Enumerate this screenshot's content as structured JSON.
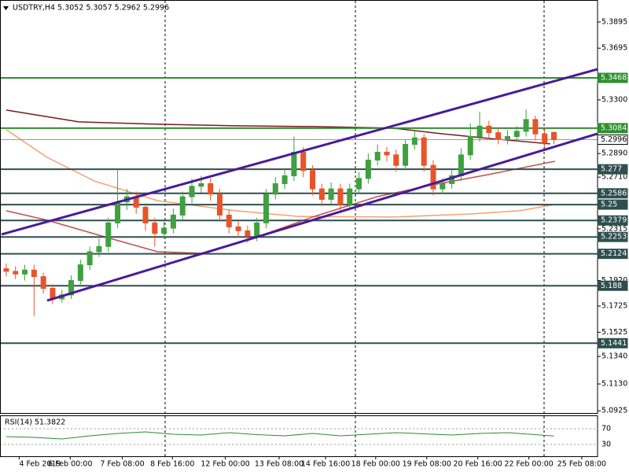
{
  "chart_data": {
    "type": "candlestick",
    "title": "USDTRY,H4  5.3052 5.3057 5.2962 5.2996",
    "open": [
      5.201,
      5.199,
      5.197,
      5.2,
      5.195,
      5.186,
      5.178,
      5.181,
      5.192,
      5.204,
      5.214,
      5.218,
      5.236,
      5.252,
      5.256,
      5.248,
      5.236,
      5.228,
      5.232,
      5.242,
      5.256,
      5.264,
      5.266,
      5.258,
      5.242,
      5.233,
      5.23,
      5.226,
      5.236,
      5.258,
      5.266,
      5.272,
      5.29,
      5.276,
      5.262,
      5.254,
      5.262,
      5.25,
      5.262,
      5.27,
      5.284,
      5.29,
      5.288,
      5.28,
      5.296,
      5.301,
      5.28,
      5.262,
      5.266,
      5.272,
      5.288,
      5.302,
      5.31,
      5.305,
      5.3,
      5.302,
      5.306,
      5.315,
      5.304,
      5.3052
    ],
    "high": [
      5.205,
      5.203,
      5.204,
      5.204,
      5.198,
      5.189,
      5.185,
      5.196,
      5.208,
      5.218,
      5.224,
      5.24,
      5.277,
      5.262,
      5.26,
      5.251,
      5.24,
      5.237,
      5.247,
      5.26,
      5.27,
      5.272,
      5.27,
      5.262,
      5.246,
      5.237,
      5.234,
      5.24,
      5.262,
      5.271,
      5.277,
      5.302,
      5.294,
      5.28,
      5.266,
      5.267,
      5.266,
      5.266,
      5.275,
      5.289,
      5.296,
      5.294,
      5.292,
      5.3,
      5.306,
      5.304,
      5.284,
      5.27,
      5.277,
      5.293,
      5.312,
      5.321,
      5.314,
      5.309,
      5.307,
      5.31,
      5.323,
      5.318,
      5.308,
      5.3057
    ],
    "low": [
      5.195,
      5.193,
      5.192,
      5.165,
      5.182,
      5.174,
      5.175,
      5.178,
      5.189,
      5.2,
      5.21,
      5.214,
      5.232,
      5.246,
      5.243,
      5.23,
      5.218,
      5.224,
      5.228,
      5.238,
      5.251,
      5.259,
      5.253,
      5.237,
      5.228,
      5.225,
      5.221,
      5.222,
      5.232,
      5.254,
      5.262,
      5.268,
      5.271,
      5.257,
      5.249,
      5.25,
      5.244,
      5.246,
      5.258,
      5.266,
      5.28,
      5.283,
      5.275,
      5.276,
      5.292,
      5.275,
      5.257,
      5.258,
      5.262,
      5.268,
      5.284,
      5.298,
      5.3,
      5.296,
      5.296,
      5.298,
      5.302,
      5.299,
      5.293,
      5.2962
    ],
    "close": [
      5.199,
      5.197,
      5.2,
      5.195,
      5.186,
      5.178,
      5.181,
      5.192,
      5.204,
      5.214,
      5.218,
      5.236,
      5.252,
      5.256,
      5.248,
      5.236,
      5.228,
      5.232,
      5.242,
      5.256,
      5.264,
      5.266,
      5.258,
      5.242,
      5.233,
      5.23,
      5.226,
      5.236,
      5.258,
      5.266,
      5.272,
      5.29,
      5.276,
      5.262,
      5.254,
      5.262,
      5.25,
      5.262,
      5.27,
      5.284,
      5.29,
      5.288,
      5.28,
      5.296,
      5.301,
      5.28,
      5.262,
      5.266,
      5.272,
      5.288,
      5.302,
      5.31,
      5.305,
      5.3,
      5.302,
      5.306,
      5.315,
      5.304,
      5.297,
      5.2996
    ],
    "up_color": "#3fa03f",
    "down_color": "#e8542a",
    "xlim": [
      -0.5,
      63.7
    ],
    "xticks": [
      {
        "value": 1.4,
        "label": "4 Feb 2019"
      },
      {
        "value": 6.9,
        "label": "6 Feb 00:00"
      },
      {
        "value": 12.5,
        "label": "7 Feb 08:00"
      },
      {
        "value": 17.9,
        "label": "8 Feb 16:00"
      },
      {
        "value": 23.6,
        "label": "12 Feb 00:00"
      },
      {
        "value": 29.4,
        "label": "13 Feb 08:00"
      },
      {
        "value": 34.4,
        "label": "14 Feb 16:00"
      },
      {
        "value": 39.8,
        "label": "18 Feb 00:00"
      },
      {
        "value": 45.3,
        "label": "19 Feb 08:00"
      },
      {
        "value": 50.8,
        "label": "20 Feb 16:00"
      },
      {
        "value": 56.3,
        "label": "22 Feb 00:00"
      },
      {
        "value": 62,
        "label": "25 Feb 08:00"
      }
    ],
    "ylim": [
      5.0908,
      5.4063
    ],
    "yticks": [
      5.3895,
      5.3695,
      {
        "value": 5.33,
        "label": "5.3300"
      },
      {
        "value": 5.289,
        "label": "5.2890"
      },
      {
        "value": 5.271,
        "label": "5.2710"
      },
      5.2315,
      {
        "value": 5.192,
        "label": "5.1920"
      },
      5.1725,
      5.1525,
      {
        "value": 5.134,
        "label": "5.1340"
      },
      {
        "value": 5.113,
        "label": "5.1130"
      },
      5.0925
    ],
    "levels": [
      {
        "value": 5.3468,
        "color": "#2f8f2f"
      },
      {
        "value": 5.3084,
        "color": "#2f8f2f"
      },
      {
        "value": 5.2996,
        "color": "#9a9a9a"
      },
      {
        "value": 5.277,
        "color": "#2f4f4f"
      },
      {
        "value": 5.2586,
        "color": "#2f4f4f"
      },
      {
        "value": 5.25,
        "color": "#2f4f4f"
      },
      {
        "value": 5.2379,
        "color": "#2f4f4f"
      },
      {
        "value": 5.2253,
        "color": "#2f4f4f"
      },
      {
        "value": 5.2124,
        "color": "#2f4f4f"
      },
      {
        "value": 5.188,
        "color": "#2f4f4f"
      },
      {
        "value": 5.1441,
        "color": "#2f4f4f"
      }
    ],
    "overlays": [
      {
        "color": "#7a1a1a",
        "x": [
          0,
          7.8,
          16.3,
          24.8,
          33.2,
          41.7,
          46.8,
          51.9,
          58.6
        ],
        "values": [
          5.3222,
          5.3132,
          5.3114,
          5.3102,
          5.3096,
          5.3084,
          5.3042,
          5.3006,
          5.2964
        ]
      },
      {
        "color": "#f4a070",
        "x": [
          0,
          4.4,
          9.5,
          16.3,
          24.7,
          31.5,
          41.7,
          50.2,
          55.3,
          59.1
        ],
        "values": [
          5.3072,
          5.2861,
          5.268,
          5.253,
          5.2453,
          5.241,
          5.2405,
          5.2429,
          5.2453,
          5.2501
        ]
      },
      {
        "color": "#c0504d",
        "x": [
          0,
          4.4,
          10.3,
          16.3,
          21.4,
          27.3,
          33.2,
          40,
          45.9,
          51.9,
          59.1
        ],
        "values": [
          5.2453,
          5.2381,
          5.226,
          5.214,
          5.2128,
          5.226,
          5.241,
          5.2561,
          5.265,
          5.2729,
          5.2831
        ]
      }
    ],
    "trendlines": [
      {
        "color": "#4b1a9a",
        "x": [
          -0.5,
          63.7
        ],
        "values": [
          5.2273,
          5.3534
        ]
      },
      {
        "color": "#4b1a9a",
        "x": [
          4.4,
          63.7
        ],
        "values": [
          5.1767,
          5.3042
        ]
      }
    ],
    "rsi": {
      "label": "RSI(14) 51.3822",
      "color": "#2e8b2e",
      "ylim": [
        0,
        100
      ],
      "yticks": [
        70,
        30
      ],
      "x": [
        0,
        3,
        6,
        9,
        12,
        15,
        18,
        21,
        24,
        27,
        30,
        33,
        36,
        39,
        42,
        45,
        48,
        51,
        54,
        57,
        59
      ],
      "values": [
        50,
        48,
        44,
        52,
        58,
        62,
        56,
        54,
        60,
        55,
        52,
        58,
        52,
        56,
        60,
        57,
        54,
        58,
        60,
        55,
        51.3822
      ]
    }
  }
}
